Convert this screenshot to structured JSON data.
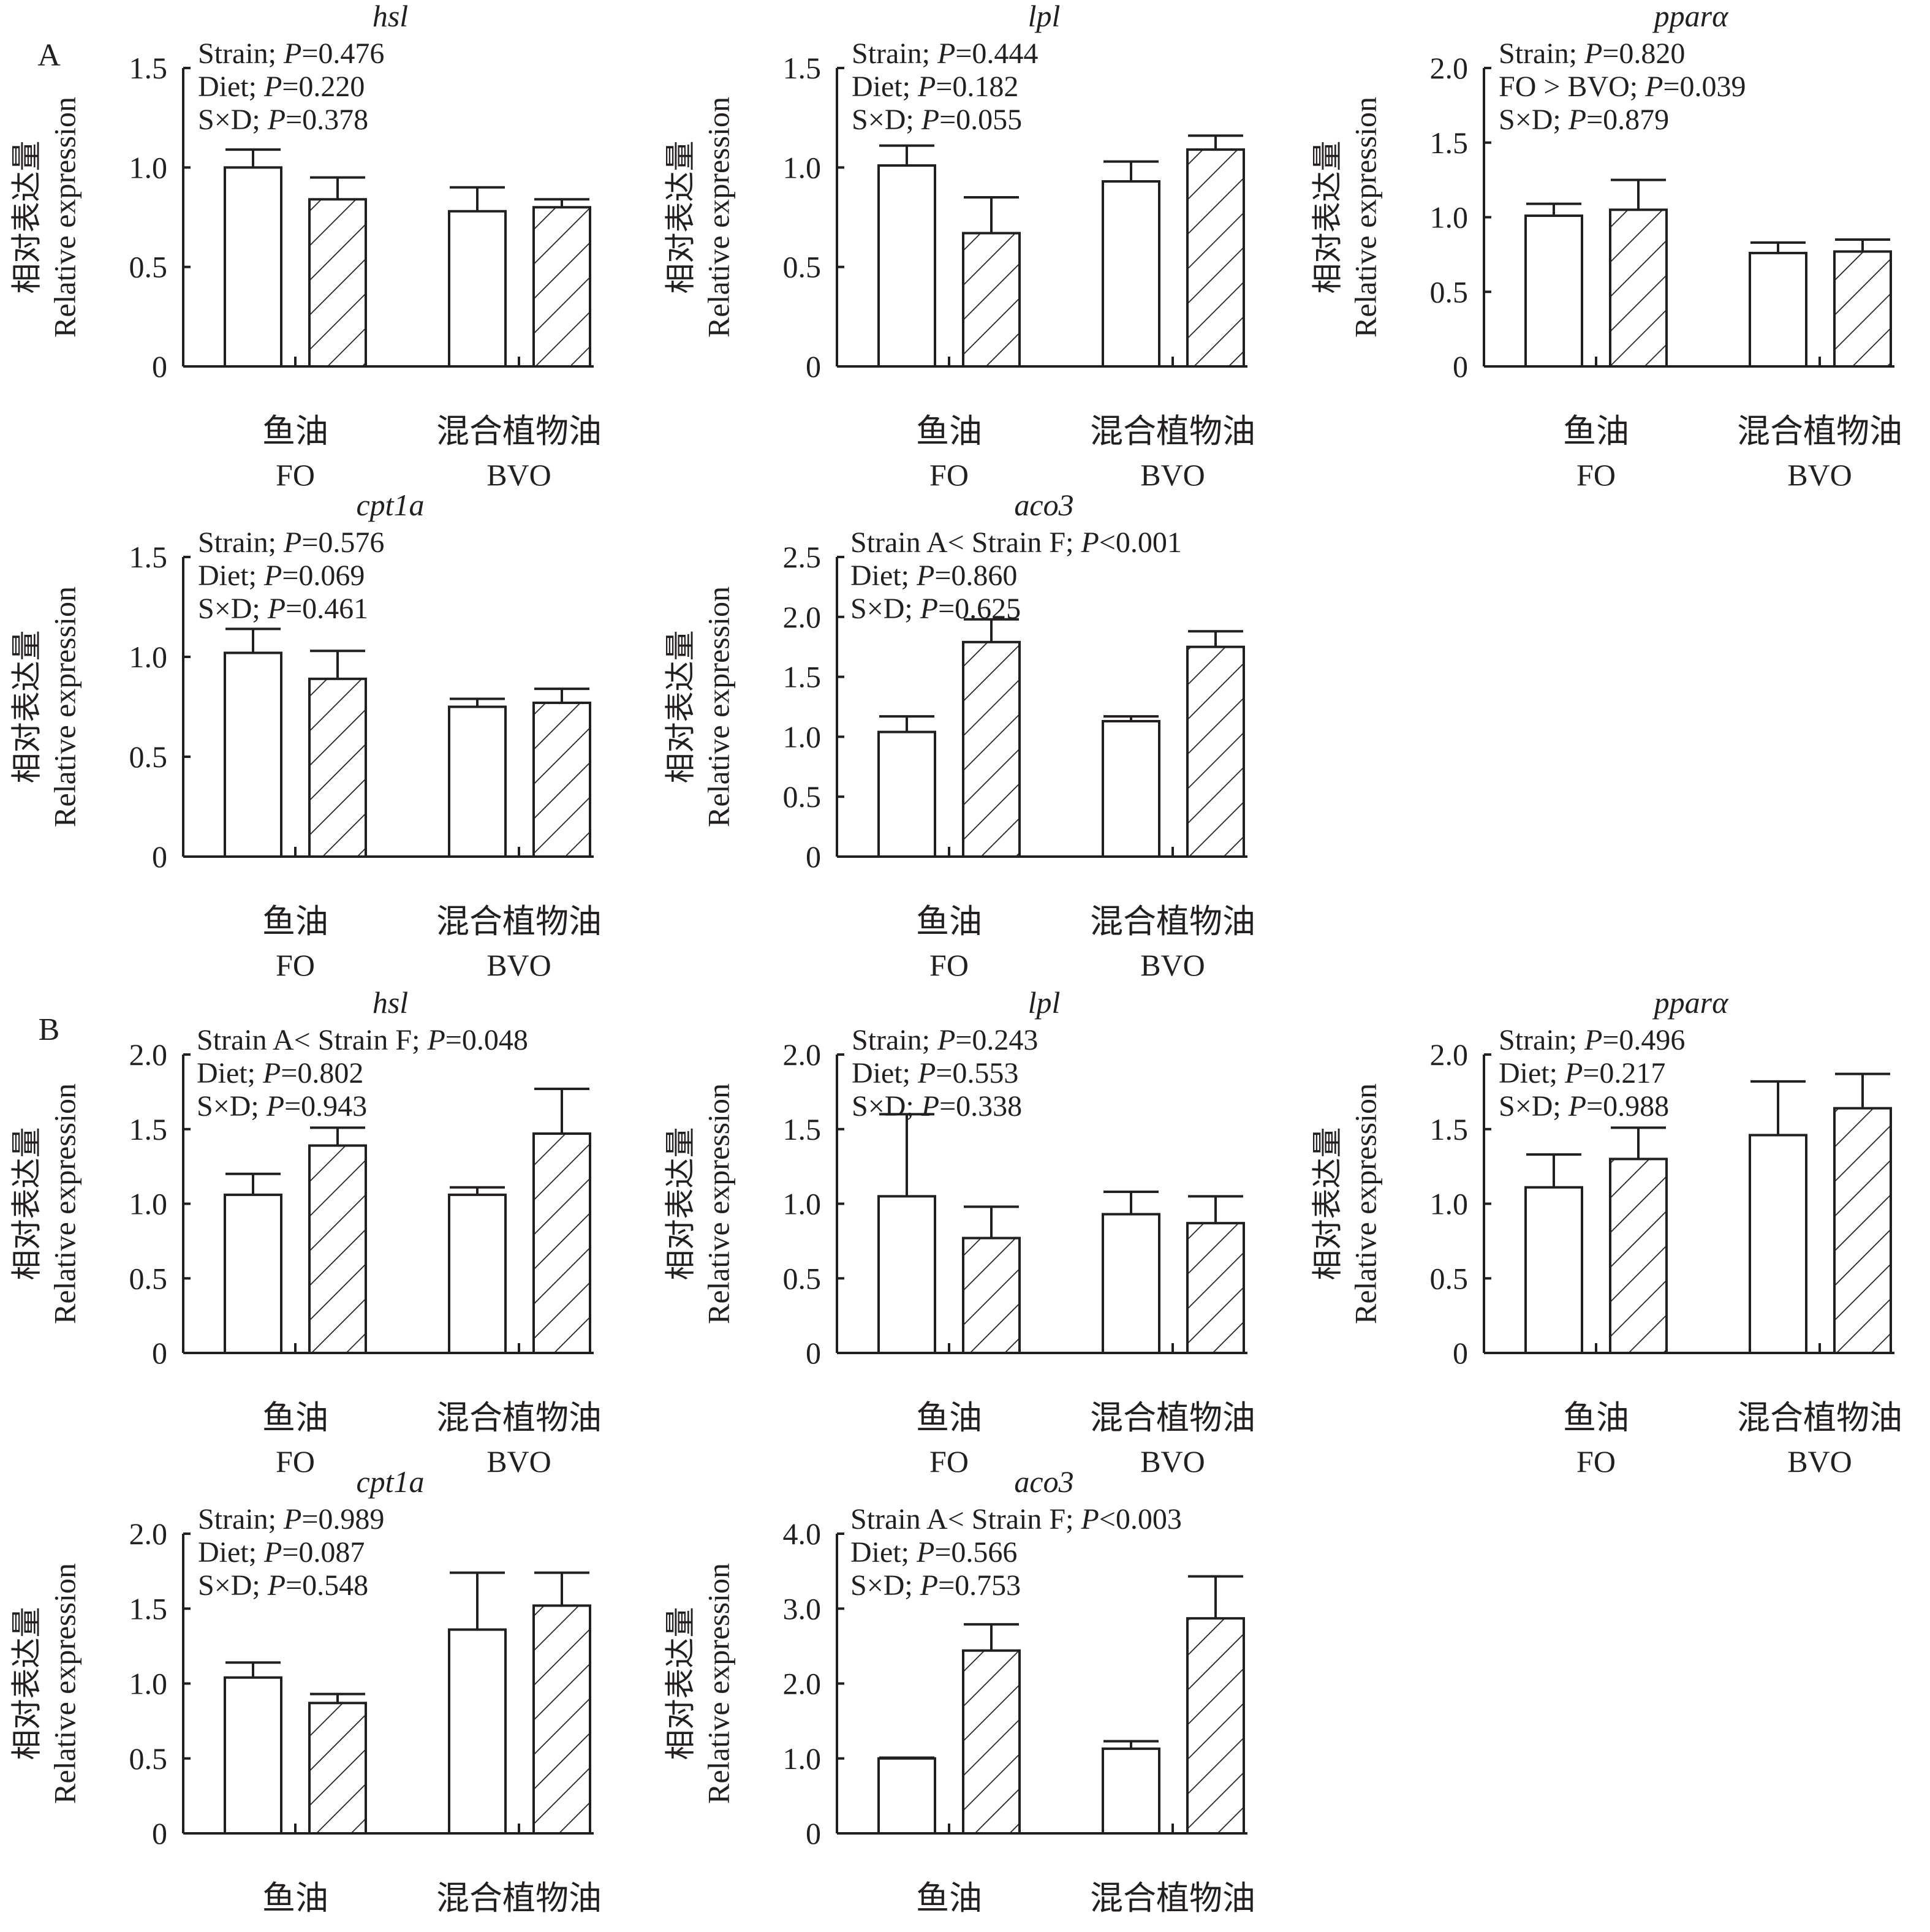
{
  "figure": {
    "panel_labels": [
      "A",
      "B"
    ],
    "y_axis_label_zh": "相对表达量",
    "y_axis_label_en": "Relative expression",
    "categories": [
      {
        "zh": "鱼油",
        "en": "FO"
      },
      {
        "zh": "混合植物油",
        "en": "BVO"
      }
    ],
    "series_note": "Each diet group shows two bars: open (white) and hatched",
    "colors": {
      "ink": "#231f20",
      "background": "#ffffff"
    }
  },
  "chart_data": [
    {
      "type": "bar",
      "section": "A",
      "title": "hsl",
      "annotations": [
        "Strain; |P|=0.476",
        "Diet; |P|=0.220",
        "S×D; |P|=0.378"
      ],
      "ylim": [
        0,
        1.5
      ],
      "yticks": [
        "0",
        "0.5",
        "1.0",
        "1.5"
      ],
      "ytick_values": [
        0,
        0.5,
        1.0,
        1.5
      ],
      "categories": [
        "FO",
        "BVO"
      ],
      "series": [
        {
          "name": "open",
          "values": [
            1.0,
            0.78
          ],
          "errors": [
            0.09,
            0.12
          ]
        },
        {
          "name": "hatched",
          "values": [
            0.84,
            0.8
          ],
          "errors": [
            0.11,
            0.04
          ]
        }
      ]
    },
    {
      "type": "bar",
      "section": "A",
      "title": "lpl",
      "annotations": [
        "Strain; |P|=0.444",
        "Diet; |P|=0.182",
        "S×D; |P|=0.055"
      ],
      "ylim": [
        0,
        1.5
      ],
      "yticks": [
        "0",
        "0.5",
        "1.0",
        "1.5"
      ],
      "ytick_values": [
        0,
        0.5,
        1.0,
        1.5
      ],
      "categories": [
        "FO",
        "BVO"
      ],
      "series": [
        {
          "name": "open",
          "values": [
            1.01,
            0.93
          ],
          "errors": [
            0.1,
            0.1
          ]
        },
        {
          "name": "hatched",
          "values": [
            0.67,
            1.09
          ],
          "errors": [
            0.18,
            0.07
          ]
        }
      ]
    },
    {
      "type": "bar",
      "section": "A",
      "title": "pparα",
      "annotations": [
        "Strain; |P|=0.820",
        "FO > BVO; |P|=0.039",
        "S×D; |P|=0.879"
      ],
      "ylim": [
        0,
        2.0
      ],
      "yticks": [
        "0",
        "0.5",
        "1.0",
        "1.5",
        "2.0"
      ],
      "ytick_values": [
        0,
        0.5,
        1.0,
        1.5,
        2.0
      ],
      "categories": [
        "FO",
        "BVO"
      ],
      "series": [
        {
          "name": "open",
          "values": [
            1.01,
            0.76
          ],
          "errors": [
            0.08,
            0.07
          ]
        },
        {
          "name": "hatched",
          "values": [
            1.05,
            0.77
          ],
          "errors": [
            0.2,
            0.08
          ]
        }
      ]
    },
    {
      "type": "bar",
      "section": "A",
      "title": "cpt1a",
      "annotations": [
        "Strain; |P|=0.576",
        "Diet; |P|=0.069",
        "S×D; |P|=0.461"
      ],
      "ylim": [
        0,
        1.5
      ],
      "yticks": [
        "0",
        "0.5",
        "1.0",
        "1.5"
      ],
      "ytick_values": [
        0,
        0.5,
        1.0,
        1.5
      ],
      "categories": [
        "FO",
        "BVO"
      ],
      "series": [
        {
          "name": "open",
          "values": [
            1.02,
            0.75
          ],
          "errors": [
            0.12,
            0.04
          ]
        },
        {
          "name": "hatched",
          "values": [
            0.89,
            0.77
          ],
          "errors": [
            0.14,
            0.07
          ]
        }
      ]
    },
    {
      "type": "bar",
      "section": "A",
      "title": "aco3",
      "annotations": [
        "Strain A< Strain F; |P|<0.001",
        "Diet; |P|=0.860",
        "S×D; |P|=0.625"
      ],
      "ylim": [
        0,
        2.5
      ],
      "yticks": [
        "0",
        "0.5",
        "1.0",
        "1.5",
        "2.0",
        "2.5"
      ],
      "ytick_values": [
        0,
        0.5,
        1.0,
        1.5,
        2.0,
        2.5
      ],
      "categories": [
        "FO",
        "BVO"
      ],
      "series": [
        {
          "name": "open",
          "values": [
            1.04,
            1.13
          ],
          "errors": [
            0.13,
            0.04
          ]
        },
        {
          "name": "hatched",
          "values": [
            1.79,
            1.75
          ],
          "errors": [
            0.19,
            0.13
          ]
        }
      ]
    },
    {
      "type": "bar",
      "section": "B",
      "title": "hsl",
      "annotations": [
        "Strain A< Strain F; |P|=0.048",
        "Diet; |P|=0.802",
        "S×D; |P|=0.943"
      ],
      "ylim": [
        0,
        2.0
      ],
      "yticks": [
        "0",
        "0.5",
        "1.0",
        "1.5",
        "2.0"
      ],
      "ytick_values": [
        0,
        0.5,
        1.0,
        1.5,
        2.0
      ],
      "categories": [
        "FO",
        "BVO"
      ],
      "series": [
        {
          "name": "open",
          "values": [
            1.06,
            1.06
          ],
          "errors": [
            0.14,
            0.05
          ]
        },
        {
          "name": "hatched",
          "values": [
            1.39,
            1.47
          ],
          "errors": [
            0.12,
            0.3
          ]
        }
      ]
    },
    {
      "type": "bar",
      "section": "B",
      "title": "lpl",
      "annotations": [
        "Strain; |P|=0.243",
        "Diet; |P|=0.553",
        "S×D; |P|=0.338"
      ],
      "ylim": [
        0,
        2.0
      ],
      "yticks": [
        "0",
        "0.5",
        "1.0",
        "1.5",
        "2.0"
      ],
      "ytick_values": [
        0,
        0.5,
        1.0,
        1.5,
        2.0
      ],
      "categories": [
        "FO",
        "BVO"
      ],
      "series": [
        {
          "name": "open",
          "values": [
            1.05,
            0.93
          ],
          "errors": [
            0.55,
            0.15
          ]
        },
        {
          "name": "hatched",
          "values": [
            0.77,
            0.87
          ],
          "errors": [
            0.21,
            0.18
          ]
        }
      ]
    },
    {
      "type": "bar",
      "section": "B",
      "title": "pparα",
      "annotations": [
        "Strain; |P|=0.496",
        "Diet; |P|=0.217",
        "S×D; |P|=0.988"
      ],
      "ylim": [
        0,
        2.0
      ],
      "yticks": [
        "0",
        "0.5",
        "1.0",
        "1.5",
        "2.0"
      ],
      "ytick_values": [
        0,
        0.5,
        1.0,
        1.5,
        2.0
      ],
      "categories": [
        "FO",
        "BVO"
      ],
      "series": [
        {
          "name": "open",
          "values": [
            1.11,
            1.46
          ],
          "errors": [
            0.22,
            0.36
          ]
        },
        {
          "name": "hatched",
          "values": [
            1.3,
            1.64
          ],
          "errors": [
            0.21,
            0.23
          ]
        }
      ]
    },
    {
      "type": "bar",
      "section": "B",
      "title": "cpt1a",
      "annotations": [
        "Strain; |P|=0.989",
        "Diet; |P|=0.087",
        "S×D; |P|=0.548"
      ],
      "ylim": [
        0,
        2.0
      ],
      "yticks": [
        "0",
        "0.5",
        "1.0",
        "1.5",
        "2.0"
      ],
      "ytick_values": [
        0,
        0.5,
        1.0,
        1.5,
        2.0
      ],
      "categories": [
        "FO",
        "BVO"
      ],
      "series": [
        {
          "name": "open",
          "values": [
            1.04,
            1.36
          ],
          "errors": [
            0.1,
            0.38
          ]
        },
        {
          "name": "hatched",
          "values": [
            0.87,
            1.52
          ],
          "errors": [
            0.06,
            0.22
          ]
        }
      ]
    },
    {
      "type": "bar",
      "section": "B",
      "title": "aco3",
      "annotations": [
        "Strain A< Strain F; |P|<0.003",
        "Diet; |P|=0.566",
        "S×D; |P|=0.753"
      ],
      "ylim": [
        0,
        4.0
      ],
      "yticks": [
        "0",
        "1.0",
        "2.0",
        "3.0",
        "4.0"
      ],
      "ytick_values": [
        0,
        1.0,
        2.0,
        3.0,
        4.0
      ],
      "categories": [
        "FO",
        "BVO"
      ],
      "series": [
        {
          "name": "open",
          "values": [
            1.0,
            1.13
          ],
          "errors": [
            0.01,
            0.1
          ]
        },
        {
          "name": "hatched",
          "values": [
            2.44,
            2.87
          ],
          "errors": [
            0.35,
            0.56
          ]
        }
      ]
    }
  ]
}
